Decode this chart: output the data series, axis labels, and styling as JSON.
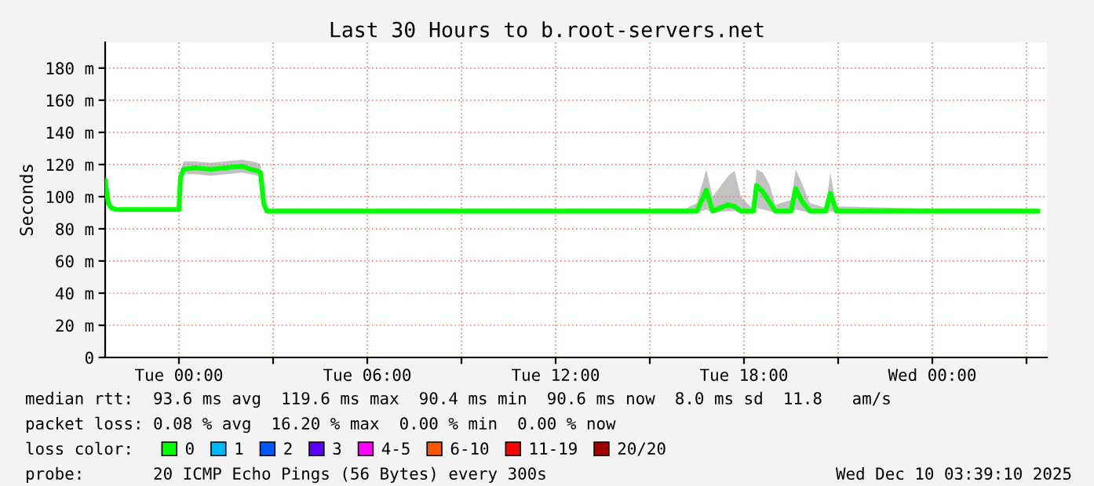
{
  "chart_data": {
    "type": "line",
    "title": "Last 30 Hours to b.root-servers.net",
    "ylabel": "Seconds",
    "x": [
      "2025-12-08T21:39",
      "2025-12-08T21:45",
      "2025-12-08T21:51",
      "2025-12-08T22:00",
      "2025-12-09T00:00",
      "2025-12-09T00:03",
      "2025-12-09T00:09",
      "2025-12-09T00:30",
      "2025-12-09T01:00",
      "2025-12-09T01:30",
      "2025-12-09T02:00",
      "2025-12-09T02:18",
      "2025-12-09T02:30",
      "2025-12-09T02:36",
      "2025-12-09T02:42",
      "2025-12-09T02:48",
      "2025-12-09T16:00",
      "2025-12-09T16:30",
      "2025-12-09T16:48",
      "2025-12-09T17:00",
      "2025-12-09T17:30",
      "2025-12-09T17:42",
      "2025-12-09T17:54",
      "2025-12-09T18:18",
      "2025-12-09T18:24",
      "2025-12-09T18:36",
      "2025-12-09T18:48",
      "2025-12-09T19:00",
      "2025-12-09T19:30",
      "2025-12-09T19:39",
      "2025-12-09T19:51",
      "2025-12-09T20:06",
      "2025-12-09T20:36",
      "2025-12-09T20:45",
      "2025-12-09T20:57",
      "2025-12-10T03:21"
    ],
    "series": [
      {
        "name": "0",
        "color": "#00ff00",
        "values": [
          110,
          96,
          93,
          92,
          92,
          112,
          117,
          118,
          117,
          118,
          119,
          117,
          116,
          115,
          96,
          91,
          91,
          91,
          104,
          91,
          95,
          94,
          91,
          91,
          107,
          103,
          97,
          91,
          91,
          105,
          97,
          91,
          91,
          102,
          91,
          91
        ],
        "lower": [
          108,
          95,
          92,
          91,
          91,
          110,
          114,
          114,
          113,
          114,
          115,
          114,
          113,
          112,
          95,
          90,
          90,
          90,
          92,
          90,
          91,
          91,
          90,
          90,
          93,
          92,
          91,
          90,
          90,
          92,
          91,
          90,
          90,
          91,
          90,
          90
        ],
        "upper": [
          112,
          98,
          94,
          93,
          93,
          116,
          122,
          122,
          121,
          122,
          123,
          122,
          121,
          120,
          98,
          91,
          91,
          96,
          117,
          100,
          113,
          116,
          100,
          92,
          117,
          115,
          108,
          95,
          98,
          117,
          108,
          96,
          93,
          115,
          94,
          91
        ]
      },
      {
        "name": "1",
        "color": "#00b8ff",
        "values": [
          null,
          null,
          null,
          null,
          null,
          null,
          null,
          null,
          null,
          null,
          null,
          null,
          null,
          null,
          null,
          null,
          null,
          null,
          null,
          null,
          null,
          null,
          null,
          null,
          null,
          null,
          null,
          null,
          null,
          null,
          null,
          null,
          null,
          null,
          null,
          null
        ]
      },
      {
        "name": "2",
        "color": "#0059ff",
        "values": [
          null,
          null,
          null,
          null,
          null,
          null,
          null,
          null,
          null,
          null,
          null,
          null,
          null,
          null,
          null,
          null,
          null,
          null,
          null,
          null,
          null,
          null,
          null,
          null,
          null,
          null,
          null,
          null,
          null,
          null,
          null,
          null,
          null,
          null,
          null,
          null
        ]
      },
      {
        "name": "3",
        "color": "#5e00ff",
        "values": [
          null,
          null,
          null,
          null,
          null,
          null,
          null,
          null,
          null,
          null,
          null,
          null,
          null,
          null,
          null,
          null,
          null,
          null,
          null,
          null,
          null,
          null,
          null,
          null,
          null,
          null,
          null,
          null,
          null,
          null,
          null,
          null,
          null,
          null,
          null,
          null
        ]
      },
      {
        "name": "4-5",
        "color": "#ff00ff",
        "values": [
          null,
          null,
          null,
          null,
          null,
          null,
          null,
          null,
          null,
          null,
          null,
          null,
          null,
          null,
          null,
          null,
          null,
          null,
          null,
          null,
          null,
          null,
          null,
          null,
          null,
          null,
          null,
          null,
          null,
          null,
          null,
          null,
          null,
          null,
          null,
          null
        ]
      },
      {
        "name": "6-10",
        "color": "#ff5500",
        "values": [
          null,
          null,
          null,
          null,
          null,
          null,
          null,
          null,
          null,
          null,
          null,
          null,
          null,
          null,
          null,
          null,
          null,
          null,
          null,
          null,
          null,
          null,
          null,
          null,
          null,
          null,
          null,
          null,
          null,
          null,
          null,
          null,
          null,
          null,
          null,
          null
        ]
      },
      {
        "name": "11-19",
        "color": "#ff0000",
        "values": [
          null,
          null,
          null,
          null,
          null,
          null,
          null,
          null,
          null,
          null,
          null,
          null,
          null,
          null,
          null,
          null,
          null,
          null,
          null,
          null,
          null,
          null,
          null,
          null,
          null,
          null,
          null,
          null,
          null,
          null,
          null,
          null,
          null,
          null,
          null,
          null
        ]
      },
      {
        "name": "20/20",
        "color": "#a10000",
        "values": [
          null,
          null,
          null,
          null,
          null,
          null,
          null,
          null,
          null,
          null,
          null,
          null,
          null,
          null,
          null,
          null,
          null,
          null,
          null,
          null,
          null,
          null,
          null,
          null,
          null,
          null,
          null,
          null,
          null,
          null,
          null,
          null,
          null,
          null,
          null,
          null
        ]
      }
    ],
    "legend_title": "loss color:",
    "legend": "bottom",
    "grid": true,
    "xlim": [
      "2025-12-08T21:39",
      "2025-12-10T03:39"
    ],
    "xticks": [
      {
        "value": "2025-12-09T00:00",
        "label": "Tue 00:00"
      },
      {
        "value": "2025-12-09T03:00",
        "label": null
      },
      {
        "value": "2025-12-09T06:00",
        "label": "Tue 06:00"
      },
      {
        "value": "2025-12-09T09:00",
        "label": null
      },
      {
        "value": "2025-12-09T12:00",
        "label": "Tue 12:00"
      },
      {
        "value": "2025-12-09T15:00",
        "label": null
      },
      {
        "value": "2025-12-09T18:00",
        "label": "Tue 18:00"
      },
      {
        "value": "2025-12-09T21:00",
        "label": null
      },
      {
        "value": "2025-12-10T00:00",
        "label": "Wed 00:00"
      },
      {
        "value": "2025-12-10T03:00",
        "label": null
      }
    ],
    "ylim": [
      0,
      196
    ],
    "yticks": [
      0,
      {
        "value": 20,
        "label": "20 m"
      },
      {
        "value": 40,
        "label": "40 m"
      },
      {
        "value": 60,
        "label": "60 m"
      },
      {
        "value": 80,
        "label": "80 m"
      },
      {
        "value": 100,
        "label": "100 m"
      },
      {
        "value": 120,
        "label": "120 m"
      },
      {
        "value": 140,
        "label": "140 m"
      },
      {
        "value": 160,
        "label": "160 m"
      },
      {
        "value": 180,
        "label": "180 m"
      }
    ],
    "annotations": [
      "median rtt:  93.6 ms avg  119.6 ms max  90.4 ms min  90.6 ms now  8.0 ms sd  11.8   am/s",
      "packet loss: 0.08 % avg  16.20 % max  0.00 % min  0.00 % now",
      "probe:       20 ICMP Echo Pings (56 Bytes) every 300s",
      "Wed Dec 10 03:39:10 2025"
    ]
  }
}
